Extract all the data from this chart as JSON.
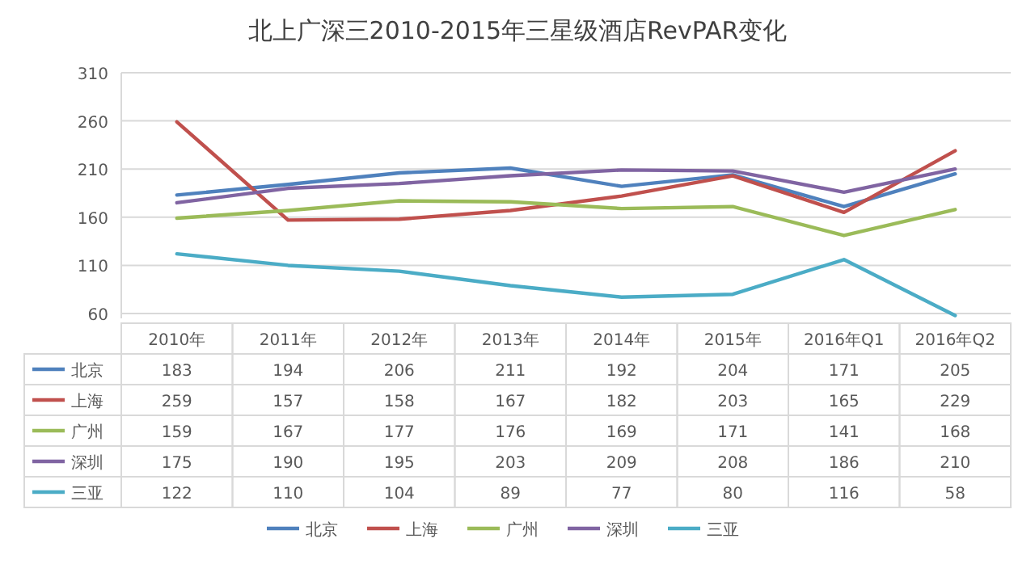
{
  "chart_data": {
    "type": "line",
    "title": "北上广深三2010-2015年三星级酒店RevPAR变化",
    "categories": [
      "2010年",
      "2011年",
      "2012年",
      "2013年",
      "2014年",
      "2015年",
      "2016年Q1",
      "2016年Q2"
    ],
    "series": [
      {
        "name": "北京",
        "color": "#4f81bd",
        "values": [
          183,
          194,
          206,
          211,
          192,
          204,
          171,
          205
        ]
      },
      {
        "name": "上海",
        "color": "#c0504d",
        "values": [
          259,
          157,
          158,
          167,
          182,
          203,
          165,
          229
        ]
      },
      {
        "name": "广州",
        "color": "#9bbb59",
        "values": [
          159,
          167,
          177,
          176,
          169,
          171,
          141,
          168
        ]
      },
      {
        "name": "深圳",
        "color": "#8064a2",
        "values": [
          175,
          190,
          195,
          203,
          209,
          208,
          186,
          210
        ]
      },
      {
        "name": "三亚",
        "color": "#4bacc6",
        "values": [
          122,
          110,
          104,
          89,
          77,
          80,
          116,
          58
        ]
      }
    ],
    "ylim": [
      55,
      310
    ],
    "yticks": [
      60,
      110,
      160,
      210,
      260,
      310
    ],
    "grid": "y",
    "legend": "bottom",
    "data_labels": true,
    "marker": "none",
    "line_style": "solid"
  }
}
